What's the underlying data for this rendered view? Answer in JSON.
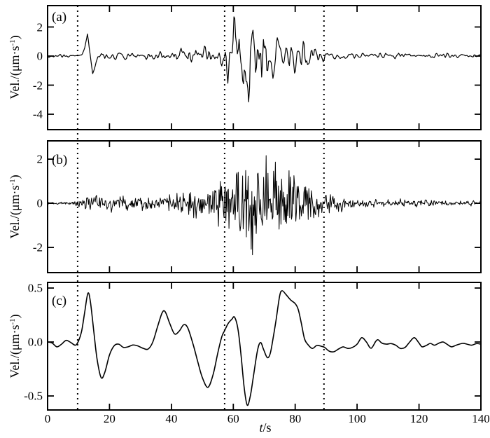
{
  "figure": {
    "background": "#ffffff",
    "axis_color": "#000000",
    "trace_color": "#000000",
    "xlabel": {
      "italic": "t",
      "rest": "/s"
    },
    "ylabel": {
      "pre": "Vel./(μm·s",
      "sup": "-1",
      "post": ")"
    },
    "dotted_guides_t": [
      9.7,
      57.2,
      89.3
    ]
  },
  "chart_data": [
    {
      "type": "line",
      "panel_label": "(a)",
      "ylabel": "Vel./(um*s^-1)",
      "xlim": [
        0,
        140
      ],
      "ylim": [
        -5.06,
        3.47
      ],
      "yticks": [
        2,
        0,
        -2,
        -4
      ],
      "ytick_labels": [
        "2",
        "0",
        "-2",
        "-4"
      ],
      "signal": "broadband seismic noise shaped by envelope",
      "noise": {
        "seed": 1234567,
        "dt": 0.28,
        "smooth": 1,
        "gain": 1.4
      },
      "baseline": [
        [
          11,
          0
        ],
        [
          12,
          0.55
        ],
        [
          12.9,
          1.55
        ],
        [
          13.6,
          0.45
        ],
        [
          14.6,
          -1.4
        ],
        [
          15.4,
          -0.7
        ],
        [
          16.2,
          -0.05
        ],
        [
          17,
          0
        ]
      ],
      "envelope": [
        [
          0,
          0.13,
          0.13
        ],
        [
          3,
          0.17,
          0.15
        ],
        [
          4.5,
          0.38,
          0.3
        ],
        [
          6,
          0.15,
          0.15
        ],
        [
          8,
          0.15,
          0.15
        ],
        [
          9.7,
          0.22,
          0.2
        ],
        [
          11,
          0.3,
          0.25
        ],
        [
          13,
          0.3,
          0.3
        ],
        [
          15,
          0.35,
          0.35
        ],
        [
          16,
          0.5,
          0.45
        ],
        [
          18,
          0.55,
          0.5
        ],
        [
          22,
          0.5,
          0.5
        ],
        [
          26,
          0.45,
          0.45
        ],
        [
          30,
          0.4,
          0.4
        ],
        [
          34,
          0.5,
          0.5
        ],
        [
          38,
          0.65,
          0.6
        ],
        [
          42,
          0.6,
          0.6
        ],
        [
          46,
          0.7,
          0.65
        ],
        [
          48,
          0.8,
          0.75
        ],
        [
          50,
          0.7,
          0.7
        ],
        [
          54,
          0.85,
          0.8
        ],
        [
          56,
          1.0,
          0.95
        ],
        [
          57,
          1.4,
          1.2
        ],
        [
          58.5,
          2.3,
          2.8
        ],
        [
          60,
          3.2,
          4.3
        ],
        [
          61.5,
          3.0,
          3.4
        ],
        [
          63,
          2.8,
          3.8
        ],
        [
          64.5,
          2.7,
          4.5
        ],
        [
          65.8,
          2.6,
          4.8
        ],
        [
          67,
          3.0,
          4.0
        ],
        [
          69,
          3.3,
          3.9
        ],
        [
          71,
          3.1,
          3.4
        ],
        [
          73,
          2.5,
          2.9
        ],
        [
          75,
          2.3,
          2.5
        ],
        [
          77,
          1.9,
          2.1
        ],
        [
          80,
          1.6,
          2.2
        ],
        [
          83,
          1.3,
          2.4
        ],
        [
          85,
          1.1,
          1.3
        ],
        [
          87,
          0.9,
          1.0
        ],
        [
          89.3,
          0.75,
          0.85
        ],
        [
          91,
          0.5,
          0.6
        ],
        [
          93,
          0.4,
          0.45
        ],
        [
          96,
          0.3,
          0.32
        ],
        [
          100,
          0.28,
          0.28
        ],
        [
          105,
          0.3,
          0.3
        ],
        [
          109,
          0.33,
          0.32
        ],
        [
          113,
          0.4,
          0.36
        ],
        [
          117,
          0.3,
          0.3
        ],
        [
          121,
          0.26,
          0.26
        ],
        [
          126,
          0.3,
          0.3
        ],
        [
          131,
          0.25,
          0.25
        ],
        [
          136,
          0.24,
          0.24
        ],
        [
          140,
          0.26,
          0.26
        ]
      ]
    },
    {
      "type": "line",
      "panel_label": "(b)",
      "ylabel": "Vel./(um*s^-1)",
      "xlim": [
        0,
        140
      ],
      "ylim": [
        -3.14,
        2.83
      ],
      "yticks": [
        2,
        0,
        -2
      ],
      "ytick_labels": [
        "2",
        "0",
        "-2"
      ],
      "signal": "high-frequency seismic noise shaped by envelope",
      "noise": {
        "seed": 90817263,
        "dt": 0.2,
        "smooth": 0,
        "gain": 1.15
      },
      "baseline": [
        [
          0,
          0
        ],
        [
          140,
          0
        ]
      ],
      "envelope": [
        [
          0,
          0.06,
          0.06
        ],
        [
          6,
          0.07,
          0.07
        ],
        [
          8.5,
          0.1,
          0.1
        ],
        [
          9.7,
          0.16,
          0.16
        ],
        [
          11,
          0.22,
          0.22
        ],
        [
          12.5,
          0.4,
          0.4
        ],
        [
          14,
          0.46,
          0.46
        ],
        [
          18,
          0.44,
          0.44
        ],
        [
          22,
          0.42,
          0.42
        ],
        [
          26,
          0.44,
          0.4
        ],
        [
          30,
          0.42,
          0.44
        ],
        [
          34,
          0.46,
          0.44
        ],
        [
          38,
          0.48,
          0.48
        ],
        [
          42,
          0.5,
          0.5
        ],
        [
          44,
          0.6,
          0.55
        ],
        [
          46,
          0.7,
          0.65
        ],
        [
          48,
          0.95,
          0.9
        ],
        [
          50,
          0.8,
          0.8
        ],
        [
          52,
          0.9,
          0.95
        ],
        [
          54,
          1.05,
          1.1
        ],
        [
          56,
          1.25,
          1.3
        ],
        [
          58,
          1.7,
          1.8
        ],
        [
          60,
          2.0,
          2.3
        ],
        [
          62,
          2.2,
          2.6
        ],
        [
          64,
          2.3,
          2.65
        ],
        [
          66,
          2.35,
          2.45
        ],
        [
          68,
          2.45,
          2.35
        ],
        [
          70,
          2.5,
          2.65
        ],
        [
          72,
          2.25,
          2.35
        ],
        [
          74,
          1.95,
          2.05
        ],
        [
          76,
          2.2,
          1.9
        ],
        [
          78,
          1.55,
          1.6
        ],
        [
          80,
          1.3,
          1.35
        ],
        [
          82,
          1.1,
          1.15
        ],
        [
          84,
          0.95,
          1.0
        ],
        [
          86,
          0.85,
          0.9
        ],
        [
          88,
          0.8,
          0.85
        ],
        [
          90,
          0.65,
          0.7
        ],
        [
          92,
          0.5,
          0.55
        ],
        [
          95,
          0.38,
          0.4
        ],
        [
          100,
          0.25,
          0.25
        ],
        [
          104,
          0.2,
          0.2
        ],
        [
          108,
          0.2,
          0.2
        ],
        [
          112,
          0.24,
          0.24
        ],
        [
          116,
          0.22,
          0.22
        ],
        [
          120,
          0.18,
          0.18
        ],
        [
          125,
          0.17,
          0.17
        ],
        [
          130,
          0.16,
          0.16
        ],
        [
          135,
          0.15,
          0.15
        ],
        [
          140,
          0.14,
          0.14
        ]
      ]
    },
    {
      "type": "line",
      "panel_label": "(c)",
      "ylabel": "Vel./(um*s^-1)",
      "xlim": [
        0,
        140
      ],
      "ylim": [
        -0.63,
        0.552
      ],
      "yticks": [
        0.5,
        0,
        -0.5
      ],
      "ytick_labels": [
        "0.5",
        "0.0",
        "-0.5"
      ],
      "signal": "low-frequency filtered waveform",
      "points": [
        [
          0,
          0
        ],
        [
          1.5,
          -0.01
        ],
        [
          3,
          -0.045
        ],
        [
          4.5,
          -0.02
        ],
        [
          6,
          0.015
        ],
        [
          7.5,
          -0.005
        ],
        [
          9,
          -0.03
        ],
        [
          10,
          0.01
        ],
        [
          11,
          0.1
        ],
        [
          12,
          0.28
        ],
        [
          13,
          0.45
        ],
        [
          13.8,
          0.38
        ],
        [
          15,
          0.08
        ],
        [
          16,
          -0.16
        ],
        [
          17.3,
          -0.33
        ],
        [
          18.5,
          -0.28
        ],
        [
          20,
          -0.12
        ],
        [
          21.5,
          -0.035
        ],
        [
          23,
          -0.02
        ],
        [
          24.5,
          -0.05
        ],
        [
          26,
          -0.045
        ],
        [
          27.5,
          -0.028
        ],
        [
          29,
          -0.035
        ],
        [
          31,
          -0.06
        ],
        [
          32.5,
          -0.065
        ],
        [
          34,
          0
        ],
        [
          35.5,
          0.14
        ],
        [
          37,
          0.27
        ],
        [
          38,
          0.28
        ],
        [
          39.5,
          0.17
        ],
        [
          41,
          0.075
        ],
        [
          42.5,
          0.1
        ],
        [
          44,
          0.16
        ],
        [
          45.3,
          0.13
        ],
        [
          47,
          -0.02
        ],
        [
          48.5,
          -0.18
        ],
        [
          50,
          -0.33
        ],
        [
          51.8,
          -0.42
        ],
        [
          53.5,
          -0.3
        ],
        [
          55,
          -0.1
        ],
        [
          56.3,
          0.05
        ],
        [
          57.2,
          0.105
        ],
        [
          58.3,
          0.17
        ],
        [
          59.5,
          0.21
        ],
        [
          60.4,
          0.23
        ],
        [
          61.5,
          0.12
        ],
        [
          62.5,
          -0.12
        ],
        [
          63.5,
          -0.42
        ],
        [
          64.5,
          -0.585
        ],
        [
          65.5,
          -0.5
        ],
        [
          66.5,
          -0.32
        ],
        [
          67.8,
          -0.08
        ],
        [
          68.8,
          -0.005
        ],
        [
          69.8,
          -0.07
        ],
        [
          71,
          -0.145
        ],
        [
          72,
          -0.1
        ],
        [
          73,
          0.06
        ],
        [
          73.8,
          0.2
        ],
        [
          75,
          0.43
        ],
        [
          75.8,
          0.475
        ],
        [
          77,
          0.44
        ],
        [
          78.5,
          0.39
        ],
        [
          80,
          0.355
        ],
        [
          81,
          0.3
        ],
        [
          82,
          0.17
        ],
        [
          83,
          0.03
        ],
        [
          84,
          -0.02
        ],
        [
          85.5,
          -0.06
        ],
        [
          87,
          -0.032
        ],
        [
          88.5,
          -0.04
        ],
        [
          89.5,
          -0.05
        ],
        [
          91,
          -0.085
        ],
        [
          92.5,
          -0.09
        ],
        [
          94,
          -0.065
        ],
        [
          95.5,
          -0.045
        ],
        [
          97,
          -0.06
        ],
        [
          98.5,
          -0.05
        ],
        [
          100,
          -0.02
        ],
        [
          101.5,
          0.04
        ],
        [
          103,
          0
        ],
        [
          104.5,
          -0.058
        ],
        [
          106,
          0.005
        ],
        [
          106.8,
          0.02
        ],
        [
          108,
          -0.01
        ],
        [
          109.5,
          -0.02
        ],
        [
          111,
          -0.015
        ],
        [
          112.5,
          -0.03
        ],
        [
          114,
          -0.06
        ],
        [
          115.5,
          -0.05
        ],
        [
          117,
          0
        ],
        [
          118.5,
          0.04
        ],
        [
          120,
          -0.01
        ],
        [
          121,
          -0.045
        ],
        [
          122.5,
          -0.03
        ],
        [
          123.7,
          -0.013
        ],
        [
          125,
          -0.03
        ],
        [
          126.5,
          -0.01
        ],
        [
          127.8,
          0
        ],
        [
          129,
          -0.02
        ],
        [
          130.5,
          -0.045
        ],
        [
          132,
          -0.03
        ],
        [
          134,
          -0.013
        ],
        [
          135.5,
          -0.02
        ],
        [
          137,
          -0.03
        ],
        [
          138.5,
          -0.015
        ],
        [
          140,
          -0.02
        ]
      ]
    }
  ],
  "x_axis": {
    "ticks": [
      0,
      20,
      40,
      60,
      80,
      100,
      120,
      140
    ],
    "tick_labels": [
      "0",
      "20",
      "40",
      "60",
      "80",
      "100",
      "120",
      "140"
    ]
  }
}
